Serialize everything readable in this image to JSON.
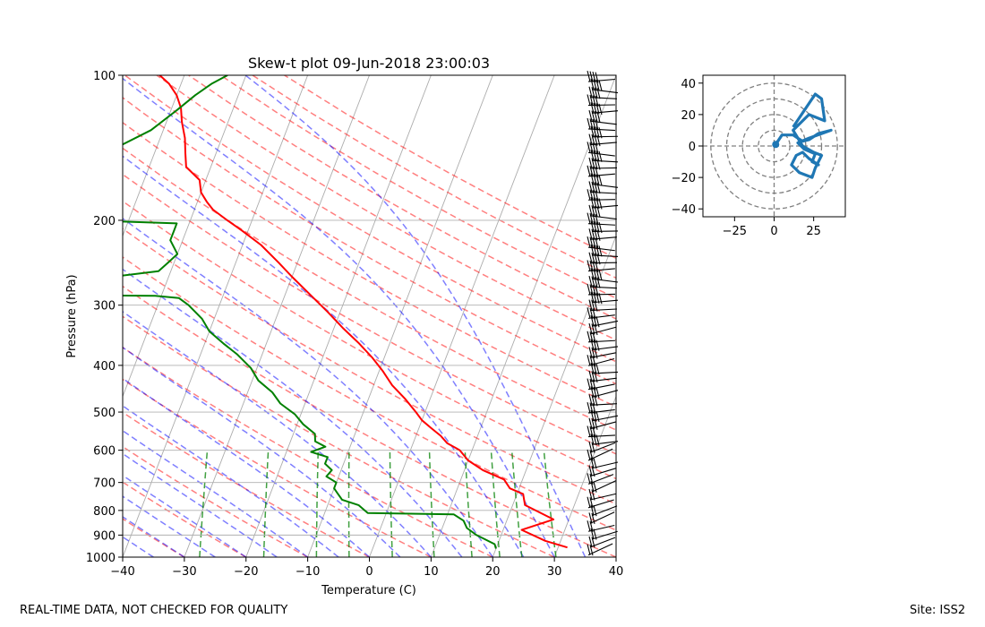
{
  "footer": {
    "left": "REAL-TIME DATA, NOT CHECKED FOR QUALITY",
    "right": "Site: ISS2"
  },
  "chart_data": [
    {
      "type": "line",
      "title": "Skew-t plot 09-Jun-2018 23:00:03",
      "xlabel": "Temperature (C)",
      "ylabel": "Pressure (hPa)",
      "xlim": [
        -40,
        40
      ],
      "ylim": [
        1000,
        100
      ],
      "yscale": "log",
      "xticks": [
        -40,
        -30,
        -20,
        -10,
        0,
        10,
        20,
        30,
        40
      ],
      "yticks": [
        100,
        200,
        300,
        400,
        500,
        600,
        700,
        800,
        900,
        1000
      ],
      "grid": true,
      "series": [
        {
          "role": "temperature",
          "color": "#ff0000",
          "points": [
            [
              31.5,
              955
            ],
            [
              27.5,
              925
            ],
            [
              23,
              878
            ],
            [
              27.5,
              835
            ],
            [
              22,
              780
            ],
            [
              21,
              740
            ],
            [
              18.5,
              720
            ],
            [
              17,
              690
            ],
            [
              13,
              660
            ],
            [
              10,
              630
            ],
            [
              8,
              600
            ],
            [
              5.5,
              580
            ],
            [
              4,
              560
            ],
            [
              2,
              540
            ],
            [
              0,
              520
            ],
            [
              -1.5,
              500
            ],
            [
              -4,
              470
            ],
            [
              -7,
              440
            ],
            [
              -9.5,
              410
            ],
            [
              -12,
              385
            ],
            [
              -15,
              360
            ],
            [
              -18.5,
              335
            ],
            [
              -22,
              310
            ],
            [
              -26,
              285
            ],
            [
              -30,
              262
            ],
            [
              -33,
              245
            ],
            [
              -37,
              225
            ],
            [
              -41,
              210
            ],
            [
              -44,
              200
            ],
            [
              -47,
              190
            ],
            [
              -48.5,
              183
            ],
            [
              -50,
              175
            ],
            [
              -51,
              165
            ],
            [
              -54,
              155
            ],
            [
              -55,
              145
            ],
            [
              -56,
              135
            ],
            [
              -57.5,
              125
            ],
            [
              -58.5,
              117
            ],
            [
              -60,
              110
            ],
            [
              -62,
              104
            ],
            [
              -64,
              100
            ]
          ]
        },
        {
          "role": "dewpoint",
          "color": "#008000",
          "points": [
            [
              20,
              960
            ],
            [
              19.5,
              940
            ],
            [
              16,
              900
            ],
            [
              14,
              870
            ],
            [
              13,
              840
            ],
            [
              11,
              815
            ],
            [
              -3,
              810
            ],
            [
              -5,
              780
            ],
            [
              -8,
              760
            ],
            [
              -9,
              740
            ],
            [
              -10,
              720
            ],
            [
              -10,
              700
            ],
            [
              -12,
              680
            ],
            [
              -11.5,
              660
            ],
            [
              -13,
              640
            ],
            [
              -13,
              620
            ],
            [
              -16,
              605
            ],
            [
              -14,
              590
            ],
            [
              -16,
              575
            ],
            [
              -16.5,
              555
            ],
            [
              -19,
              530
            ],
            [
              -21,
              505
            ],
            [
              -24,
              480
            ],
            [
              -26,
              455
            ],
            [
              -29,
              430
            ],
            [
              -31,
              405
            ],
            [
              -34,
              380
            ],
            [
              -37,
              360
            ],
            [
              -40,
              340
            ],
            [
              -42,
              320
            ],
            [
              -45,
              300
            ],
            [
              -47,
              290
            ],
            [
              -51,
              287
            ],
            [
              -84,
              285
            ],
            [
              -71,
              283
            ],
            [
              -70,
              278
            ],
            [
              -82,
              270
            ],
            [
              -63,
              268
            ],
            [
              -59,
              262
            ],
            [
              -52,
              255
            ],
            [
              -51,
              245
            ],
            [
              -50,
              235
            ],
            [
              -52,
              220
            ],
            [
              -52,
              210
            ],
            [
              -52,
              203
            ],
            [
              -67,
              200
            ],
            [
              -64,
              195
            ],
            [
              -64,
              188
            ],
            [
              -65,
              180
            ],
            [
              -65,
              170
            ],
            [
              -67,
              160
            ],
            [
              -67,
              150
            ],
            [
              -66,
              140
            ],
            [
              -62,
              130
            ],
            [
              -59,
              118
            ],
            [
              -57,
              110
            ],
            [
              -55,
              104
            ],
            [
              -53,
              100
            ]
          ]
        }
      ],
      "background_lines": {
        "dry_adiabats_color": "#ff0000",
        "moist_adiabats_color": "#0000ff",
        "mixing_ratio_color": "#008000",
        "isotherms_color": "#808080"
      },
      "wind_barbs": "present along right edge, 100-1000 hPa"
    },
    {
      "type": "line",
      "subtype": "hodograph",
      "xlim": [
        -45,
        45
      ],
      "ylim": [
        -45,
        45
      ],
      "xticks": [
        -25,
        0,
        25
      ],
      "yticks": [
        -40,
        -20,
        0,
        20,
        40
      ],
      "range_rings": [
        10,
        20,
        30,
        40
      ],
      "color": "#1f77b4",
      "points": [
        [
          1,
          1
        ],
        [
          5,
          7
        ],
        [
          12,
          7
        ],
        [
          18,
          3
        ],
        [
          22,
          4
        ],
        [
          28,
          8
        ],
        [
          36,
          10
        ],
        [
          22,
          5
        ],
        [
          15,
          2
        ],
        [
          19,
          -2
        ],
        [
          26,
          -5
        ],
        [
          24,
          -10
        ],
        [
          28,
          -12
        ],
        [
          22,
          -8
        ],
        [
          18,
          -4
        ],
        [
          14,
          -6
        ],
        [
          11,
          -12
        ],
        [
          16,
          -17
        ],
        [
          24,
          -20
        ],
        [
          26,
          -14
        ],
        [
          30,
          -6
        ],
        [
          25,
          -4
        ],
        [
          18,
          0
        ],
        [
          12,
          10
        ],
        [
          22,
          20
        ],
        [
          32,
          16
        ],
        [
          30,
          30
        ],
        [
          26,
          33
        ],
        [
          12,
          12
        ]
      ]
    }
  ]
}
